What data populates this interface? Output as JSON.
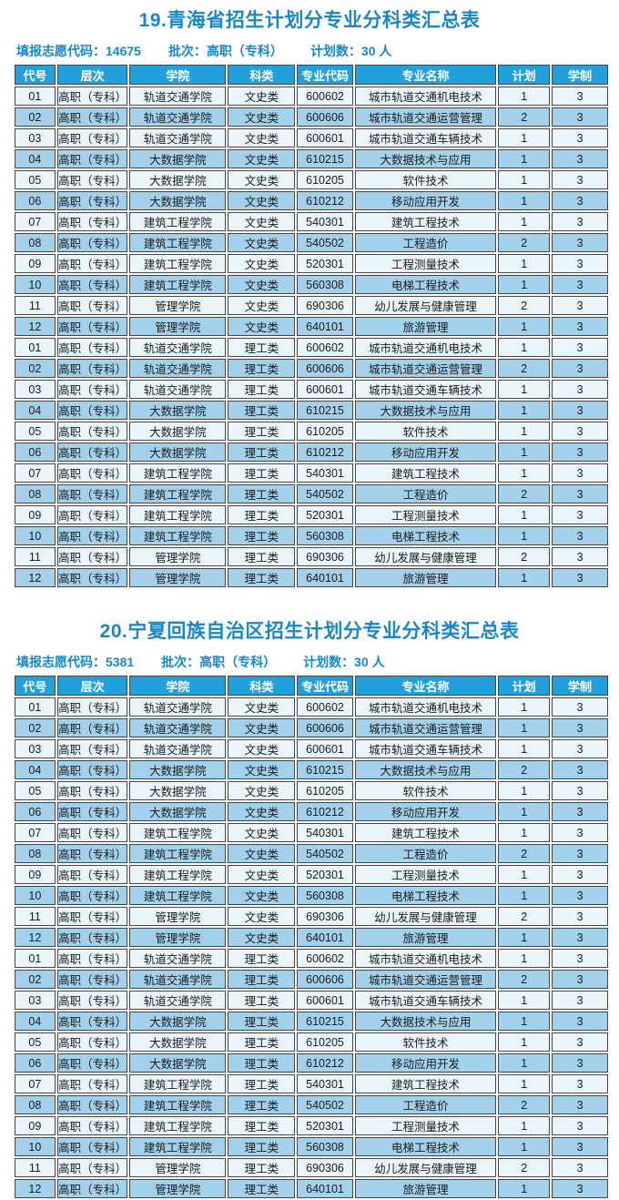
{
  "colors": {
    "title_text": "#1787c9",
    "meta_text": "#1787c9",
    "header_bg": "#22a0dc",
    "header_text": "#ffffff",
    "row_light": "#eaf4fb",
    "row_dark": "#a3d0eb",
    "border": "#454545",
    "cell_text": "#1b1b1b"
  },
  "table_headers": [
    "代号",
    "层次",
    "学院",
    "科类",
    "专业代码",
    "专业名称",
    "计划",
    "学制"
  ],
  "sections": [
    {
      "id": "section-19-qinghai",
      "title": "19.青海省招生计划分专业分科类汇总表",
      "meta": [
        "填报志愿代码：14675",
        "批次：高职（专科）",
        "计划数：30 人"
      ],
      "rows": [
        [
          "01",
          "高职（专科）",
          "轨道交通学院",
          "文史类",
          "600602",
          "城市轨道交通机电技术",
          "1",
          "3"
        ],
        [
          "02",
          "高职（专科）",
          "轨道交通学院",
          "文史类",
          "600606",
          "城市轨道交通运营管理",
          "2",
          "3"
        ],
        [
          "03",
          "高职（专科）",
          "轨道交通学院",
          "文史类",
          "600601",
          "城市轨道交通车辆技术",
          "1",
          "3"
        ],
        [
          "04",
          "高职（专科）",
          "大数据学院",
          "文史类",
          "610215",
          "大数据技术与应用",
          "1",
          "3"
        ],
        [
          "05",
          "高职（专科）",
          "大数据学院",
          "文史类",
          "610205",
          "软件技术",
          "1",
          "3"
        ],
        [
          "06",
          "高职（专科）",
          "大数据学院",
          "文史类",
          "610212",
          "移动应用开发",
          "1",
          "3"
        ],
        [
          "07",
          "高职（专科）",
          "建筑工程学院",
          "文史类",
          "540301",
          "建筑工程技术",
          "1",
          "3"
        ],
        [
          "08",
          "高职（专科）",
          "建筑工程学院",
          "文史类",
          "540502",
          "工程造价",
          "2",
          "3"
        ],
        [
          "09",
          "高职（专科）",
          "建筑工程学院",
          "文史类",
          "520301",
          "工程测量技术",
          "1",
          "3"
        ],
        [
          "10",
          "高职（专科）",
          "建筑工程学院",
          "文史类",
          "560308",
          "电梯工程技术",
          "1",
          "3"
        ],
        [
          "11",
          "高职（专科）",
          "管理学院",
          "文史类",
          "690306",
          "幼儿发展与健康管理",
          "2",
          "3"
        ],
        [
          "12",
          "高职（专科）",
          "管理学院",
          "文史类",
          "640101",
          "旅游管理",
          "1",
          "3"
        ],
        [
          "01",
          "高职（专科）",
          "轨道交通学院",
          "理工类",
          "600602",
          "城市轨道交通机电技术",
          "1",
          "3"
        ],
        [
          "02",
          "高职（专科）",
          "轨道交通学院",
          "理工类",
          "600606",
          "城市轨道交通运营管理",
          "2",
          "3"
        ],
        [
          "03",
          "高职（专科）",
          "轨道交通学院",
          "理工类",
          "600601",
          "城市轨道交通车辆技术",
          "1",
          "3"
        ],
        [
          "04",
          "高职（专科）",
          "大数据学院",
          "理工类",
          "610215",
          "大数据技术与应用",
          "1",
          "3"
        ],
        [
          "05",
          "高职（专科）",
          "大数据学院",
          "理工类",
          "610205",
          "软件技术",
          "1",
          "3"
        ],
        [
          "06",
          "高职（专科）",
          "大数据学院",
          "理工类",
          "610212",
          "移动应用开发",
          "1",
          "3"
        ],
        [
          "07",
          "高职（专科）",
          "建筑工程学院",
          "理工类",
          "540301",
          "建筑工程技术",
          "1",
          "3"
        ],
        [
          "08",
          "高职（专科）",
          "建筑工程学院",
          "理工类",
          "540502",
          "工程造价",
          "2",
          "3"
        ],
        [
          "09",
          "高职（专科）",
          "建筑工程学院",
          "理工类",
          "520301",
          "工程测量技术",
          "1",
          "3"
        ],
        [
          "10",
          "高职（专科）",
          "建筑工程学院",
          "理工类",
          "560308",
          "电梯工程技术",
          "1",
          "3"
        ],
        [
          "11",
          "高职（专科）",
          "管理学院",
          "理工类",
          "690306",
          "幼儿发展与健康管理",
          "2",
          "3"
        ],
        [
          "12",
          "高职（专科）",
          "管理学院",
          "理工类",
          "640101",
          "旅游管理",
          "1",
          "3"
        ]
      ]
    },
    {
      "id": "section-20-ningxia",
      "title": "20.宁夏回族自治区招生计划分专业分科类汇总表",
      "meta": [
        "填报志愿代码：5381",
        "批次：高职（专科）",
        "计划数：30 人"
      ],
      "rows": [
        [
          "01",
          "高职（专科）",
          "轨道交通学院",
          "文史类",
          "600602",
          "城市轨道交通机电技术",
          "1",
          "3"
        ],
        [
          "02",
          "高职（专科）",
          "轨道交通学院",
          "文史类",
          "600606",
          "城市轨道交通运营管理",
          "1",
          "3"
        ],
        [
          "03",
          "高职（专科）",
          "轨道交通学院",
          "文史类",
          "600601",
          "城市轨道交通车辆技术",
          "1",
          "3"
        ],
        [
          "04",
          "高职（专科）",
          "大数据学院",
          "文史类",
          "610215",
          "大数据技术与应用",
          "2",
          "3"
        ],
        [
          "05",
          "高职（专科）",
          "大数据学院",
          "文史类",
          "610205",
          "软件技术",
          "1",
          "3"
        ],
        [
          "06",
          "高职（专科）",
          "大数据学院",
          "文史类",
          "610212",
          "移动应用开发",
          "1",
          "3"
        ],
        [
          "07",
          "高职（专科）",
          "建筑工程学院",
          "文史类",
          "540301",
          "建筑工程技术",
          "1",
          "3"
        ],
        [
          "08",
          "高职（专科）",
          "建筑工程学院",
          "文史类",
          "540502",
          "工程造价",
          "2",
          "3"
        ],
        [
          "09",
          "高职（专科）",
          "建筑工程学院",
          "文史类",
          "520301",
          "工程测量技术",
          "1",
          "3"
        ],
        [
          "10",
          "高职（专科）",
          "建筑工程学院",
          "文史类",
          "560308",
          "电梯工程技术",
          "1",
          "3"
        ],
        [
          "11",
          "高职（专科）",
          "管理学院",
          "文史类",
          "690306",
          "幼儿发展与健康管理",
          "2",
          "3"
        ],
        [
          "12",
          "高职（专科）",
          "管理学院",
          "文史类",
          "640101",
          "旅游管理",
          "1",
          "3"
        ],
        [
          "01",
          "高职（专科）",
          "轨道交通学院",
          "理工类",
          "600602",
          "城市轨道交通机电技术",
          "1",
          "3"
        ],
        [
          "02",
          "高职（专科）",
          "轨道交通学院",
          "理工类",
          "600606",
          "城市轨道交通运营管理",
          "2",
          "3"
        ],
        [
          "03",
          "高职（专科）",
          "轨道交通学院",
          "理工类",
          "600601",
          "城市轨道交通车辆技术",
          "1",
          "3"
        ],
        [
          "04",
          "高职（专科）",
          "大数据学院",
          "理工类",
          "610215",
          "大数据技术与应用",
          "1",
          "3"
        ],
        [
          "05",
          "高职（专科）",
          "大数据学院",
          "理工类",
          "610205",
          "软件技术",
          "1",
          "3"
        ],
        [
          "06",
          "高职（专科）",
          "大数据学院",
          "理工类",
          "610212",
          "移动应用开发",
          "1",
          "3"
        ],
        [
          "07",
          "高职（专科）",
          "建筑工程学院",
          "理工类",
          "540301",
          "建筑工程技术",
          "1",
          "3"
        ],
        [
          "08",
          "高职（专科）",
          "建筑工程学院",
          "理工类",
          "540502",
          "工程造价",
          "2",
          "3"
        ],
        [
          "09",
          "高职（专科）",
          "建筑工程学院",
          "理工类",
          "520301",
          "工程测量技术",
          "1",
          "3"
        ],
        [
          "10",
          "高职（专科）",
          "建筑工程学院",
          "理工类",
          "560308",
          "电梯工程技术",
          "1",
          "3"
        ],
        [
          "11",
          "高职（专科）",
          "管理学院",
          "理工类",
          "690306",
          "幼儿发展与健康管理",
          "2",
          "3"
        ],
        [
          "12",
          "高职（专科）",
          "管理学院",
          "理工类",
          "640101",
          "旅游管理",
          "1",
          "3"
        ]
      ]
    }
  ]
}
